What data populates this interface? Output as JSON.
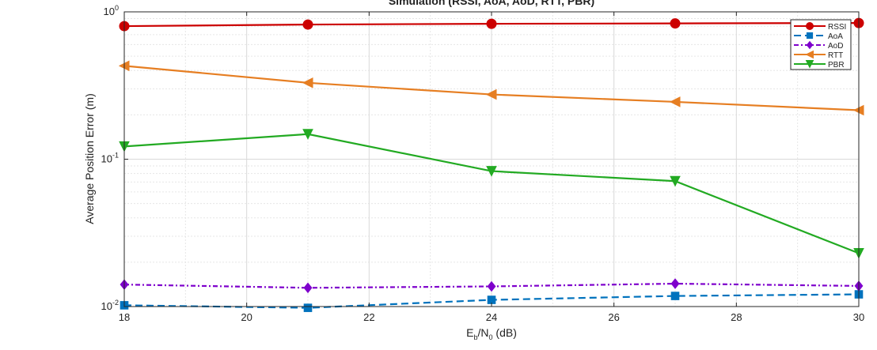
{
  "chart_data": {
    "type": "line",
    "title": "Simulation (RSSI, AoA, AoD, RTT, PBR)",
    "xlabel_main": "E",
    "xlabel_sub1": "b",
    "xlabel_mid": "/N",
    "xlabel_sub2": "0",
    "xlabel_tail": " (dB)",
    "ylabel": "Average Position Error (m)",
    "xlim": [
      18,
      30
    ],
    "ylim": [
      0.01,
      1
    ],
    "yscale": "log",
    "grid": true,
    "legend_position": "top-right",
    "x": [
      18,
      21,
      24,
      27,
      30
    ],
    "x_ticks": [
      18,
      20,
      22,
      24,
      26,
      28,
      30
    ],
    "y_ticks": [
      {
        "base": "10",
        "exp": "0",
        "value": 1
      },
      {
        "base": "10",
        "exp": "-1",
        "value": 0.1
      },
      {
        "base": "10",
        "exp": "-2",
        "value": 0.01
      }
    ],
    "series": [
      {
        "name": "RSSI",
        "color": "#cc0000",
        "marker": "circle",
        "dash": "solid",
        "values": [
          0.8,
          0.82,
          0.83,
          0.835,
          0.84
        ]
      },
      {
        "name": "AoA",
        "color": "#0072bd",
        "marker": "square",
        "dash": "dashed",
        "values": [
          0.0102,
          0.0098,
          0.0111,
          0.0118,
          0.0121
        ]
      },
      {
        "name": "AoD",
        "color": "#7e00cc",
        "marker": "diamond",
        "dash": "dashdot",
        "values": [
          0.0141,
          0.0134,
          0.0137,
          0.0143,
          0.0138
        ]
      },
      {
        "name": "RTT",
        "color": "#e67e22",
        "marker": "triangle-left",
        "dash": "solid",
        "values": [
          0.43,
          0.33,
          0.275,
          0.245,
          0.215
        ]
      },
      {
        "name": "PBR",
        "color": "#22aa22",
        "marker": "triangle-down",
        "dash": "solid",
        "values": [
          0.122,
          0.148,
          0.083,
          0.071,
          0.023
        ]
      }
    ]
  }
}
